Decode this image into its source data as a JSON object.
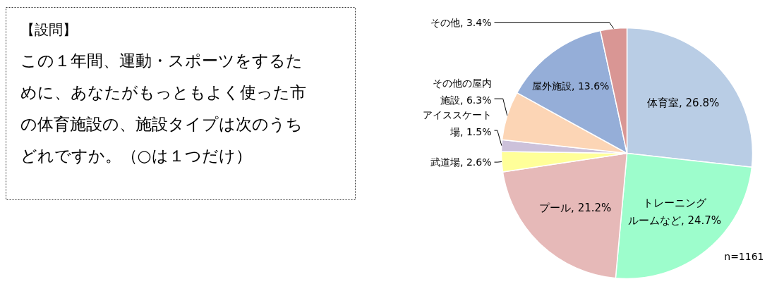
{
  "chart_data": {
    "type": "pie",
    "title": "【設問】",
    "annotations": [
      "この１年間、運動・スポーツをするために、あなたがもっともよく使った市の体育施設の、施設タイプは次のうちどれですか。（○は１つだけ）",
      "n=1161"
    ],
    "categories": [
      "体育室",
      "トレーニングルームなど",
      "プール",
      "武道場",
      "アイススケート場",
      "その他の屋内施設",
      "屋外施設",
      "その他"
    ],
    "values": [
      26.8,
      24.7,
      21.2,
      2.6,
      1.5,
      6.3,
      13.6,
      3.4
    ],
    "value_labels": [
      "26.8%",
      "24.7%",
      "21.2%",
      "2.6%",
      "1.5%",
      "6.3%",
      "13.6%",
      "3.4%"
    ],
    "colors": [
      "#b9cde5",
      "#9dfdcc",
      "#e6b9b8",
      "#ffff99",
      "#ccc1da",
      "#fcd5b5",
      "#95aed8",
      "#d99694"
    ]
  }
}
